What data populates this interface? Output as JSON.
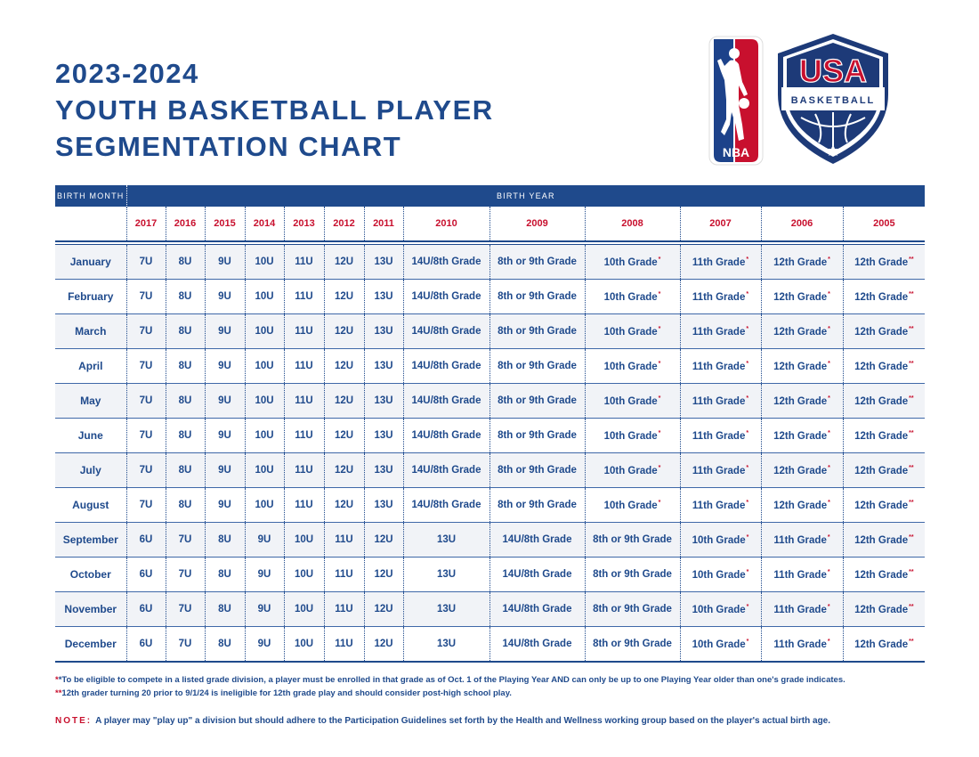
{
  "title": {
    "line1": "2023-2024",
    "line2": "YOUTH BASKETBALL PLAYER",
    "line3": "SEGMENTATION CHART"
  },
  "logos": {
    "nba_text": "NBA",
    "usa_text": "USA",
    "basketball_text": "BASKETBALL"
  },
  "colors": {
    "navy": "#1f4a8c",
    "red": "#c8102e",
    "row_alt": "#f1f3f7"
  },
  "table": {
    "birth_month_label": "BIRTH MONTH",
    "birth_year_label": "BIRTH YEAR",
    "years": [
      "2017",
      "2016",
      "2015",
      "2014",
      "2013",
      "2012",
      "2011",
      "2010",
      "2009",
      "2008",
      "2007",
      "2006",
      "2005"
    ],
    "rows": [
      {
        "month": "January",
        "cells": [
          "7U",
          "8U",
          "9U",
          "10U",
          "11U",
          "12U",
          "13U",
          "14U/8th Grade",
          "8th or 9th Grade",
          "10th Grade",
          "11th Grade",
          "12th Grade",
          "12th Grade"
        ],
        "marks": [
          "",
          "",
          "",
          "",
          "",
          "",
          "",
          "",
          "",
          "*",
          "*",
          "*",
          "**"
        ]
      },
      {
        "month": "February",
        "cells": [
          "7U",
          "8U",
          "9U",
          "10U",
          "11U",
          "12U",
          "13U",
          "14U/8th Grade",
          "8th or 9th Grade",
          "10th Grade",
          "11th Grade",
          "12th Grade",
          "12th Grade"
        ],
        "marks": [
          "",
          "",
          "",
          "",
          "",
          "",
          "",
          "",
          "",
          "*",
          "*",
          "*",
          "**"
        ]
      },
      {
        "month": "March",
        "cells": [
          "7U",
          "8U",
          "9U",
          "10U",
          "11U",
          "12U",
          "13U",
          "14U/8th Grade",
          "8th or 9th Grade",
          "10th Grade",
          "11th Grade",
          "12th Grade",
          "12th Grade"
        ],
        "marks": [
          "",
          "",
          "",
          "",
          "",
          "",
          "",
          "",
          "",
          "*",
          "*",
          "*",
          "**"
        ]
      },
      {
        "month": "April",
        "cells": [
          "7U",
          "8U",
          "9U",
          "10U",
          "11U",
          "12U",
          "13U",
          "14U/8th Grade",
          "8th or 9th Grade",
          "10th Grade",
          "11th Grade",
          "12th Grade",
          "12th Grade"
        ],
        "marks": [
          "",
          "",
          "",
          "",
          "",
          "",
          "",
          "",
          "",
          "*",
          "*",
          "*",
          "**"
        ]
      },
      {
        "month": "May",
        "cells": [
          "7U",
          "8U",
          "9U",
          "10U",
          "11U",
          "12U",
          "13U",
          "14U/8th Grade",
          "8th or 9th Grade",
          "10th Grade",
          "11th Grade",
          "12th Grade",
          "12th Grade"
        ],
        "marks": [
          "",
          "",
          "",
          "",
          "",
          "",
          "",
          "",
          "",
          "*",
          "*",
          "*",
          "**"
        ]
      },
      {
        "month": "June",
        "cells": [
          "7U",
          "8U",
          "9U",
          "10U",
          "11U",
          "12U",
          "13U",
          "14U/8th Grade",
          "8th or 9th Grade",
          "10th Grade",
          "11th Grade",
          "12th Grade",
          "12th Grade"
        ],
        "marks": [
          "",
          "",
          "",
          "",
          "",
          "",
          "",
          "",
          "",
          "*",
          "*",
          "*",
          "**"
        ]
      },
      {
        "month": "July",
        "cells": [
          "7U",
          "8U",
          "9U",
          "10U",
          "11U",
          "12U",
          "13U",
          "14U/8th Grade",
          "8th or 9th Grade",
          "10th Grade",
          "11th Grade",
          "12th Grade",
          "12th Grade"
        ],
        "marks": [
          "",
          "",
          "",
          "",
          "",
          "",
          "",
          "",
          "",
          "*",
          "*",
          "*",
          "**"
        ]
      },
      {
        "month": "August",
        "cells": [
          "7U",
          "8U",
          "9U",
          "10U",
          "11U",
          "12U",
          "13U",
          "14U/8th Grade",
          "8th or 9th Grade",
          "10th Grade",
          "11th Grade",
          "12th Grade",
          "12th Grade"
        ],
        "marks": [
          "",
          "",
          "",
          "",
          "",
          "",
          "",
          "",
          "",
          "*",
          "*",
          "*",
          "**"
        ]
      },
      {
        "month": "September",
        "cells": [
          "6U",
          "7U",
          "8U",
          "9U",
          "10U",
          "11U",
          "12U",
          "13U",
          "14U/8th Grade",
          "8th or 9th Grade",
          "10th Grade",
          "11th Grade",
          "12th Grade"
        ],
        "marks": [
          "",
          "",
          "",
          "",
          "",
          "",
          "",
          "",
          "",
          "",
          "*",
          "*",
          "**"
        ]
      },
      {
        "month": "October",
        "cells": [
          "6U",
          "7U",
          "8U",
          "9U",
          "10U",
          "11U",
          "12U",
          "13U",
          "14U/8th Grade",
          "8th or 9th Grade",
          "10th Grade",
          "11th Grade",
          "12th Grade"
        ],
        "marks": [
          "",
          "",
          "",
          "",
          "",
          "",
          "",
          "",
          "",
          "",
          "*",
          "*",
          "**"
        ]
      },
      {
        "month": "November",
        "cells": [
          "6U",
          "7U",
          "8U",
          "9U",
          "10U",
          "11U",
          "12U",
          "13U",
          "14U/8th Grade",
          "8th or 9th Grade",
          "10th Grade",
          "11th Grade",
          "12th Grade"
        ],
        "marks": [
          "",
          "",
          "",
          "",
          "",
          "",
          "",
          "",
          "",
          "",
          "*",
          "*",
          "**"
        ]
      },
      {
        "month": "December",
        "cells": [
          "6U",
          "7U",
          "8U",
          "9U",
          "10U",
          "11U",
          "12U",
          "13U",
          "14U/8th Grade",
          "8th or 9th Grade",
          "10th Grade",
          "11th Grade",
          "12th Grade"
        ],
        "marks": [
          "",
          "",
          "",
          "",
          "",
          "",
          "",
          "",
          "",
          "",
          "*",
          "*",
          "**"
        ]
      }
    ]
  },
  "notes": {
    "note1_mark": "*",
    "note1": "*To be eligible to compete in a listed grade division, a player must be enrolled in that grade as of Oct. 1 of the Playing Year AND can only be up to one Playing Year older than one's grade indicates.",
    "note2_mark": "**",
    "note2": "12th grader turning 20 prior to 9/1/24 is ineligible for 12th grade play and should consider post-high school play.",
    "note_label": "NOTE:",
    "note_text": "A player may \"play up\" a division but should adhere to the Participation Guidelines set forth by the Health and Wellness working group based on the player's actual birth age."
  }
}
